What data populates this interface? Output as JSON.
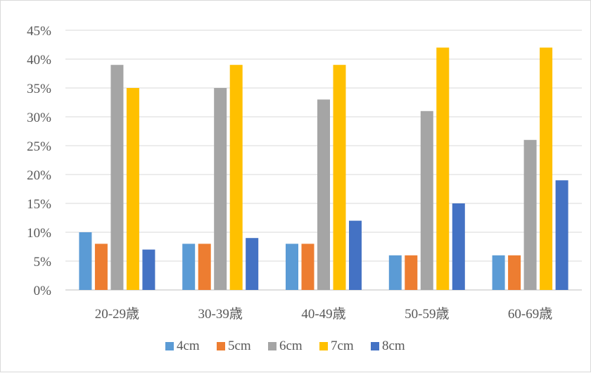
{
  "chart_data": {
    "type": "bar",
    "title": "",
    "xlabel": "",
    "ylabel": "",
    "categories": [
      "20-29歳",
      "30-39歳",
      "40-49歳",
      "50-59歳",
      "60-69歳"
    ],
    "ylim": [
      0,
      45
    ],
    "y_ticks": [
      0,
      5,
      10,
      15,
      20,
      25,
      30,
      35,
      40,
      45
    ],
    "y_tick_labels": [
      "0%",
      "5%",
      "10%",
      "15%",
      "20%",
      "25%",
      "30%",
      "35%",
      "40%",
      "45%"
    ],
    "grid": true,
    "legend_position": "bottom",
    "series": [
      {
        "name": "4cm",
        "color": "#5b9bd5",
        "values": [
          10,
          8,
          8,
          6,
          6
        ]
      },
      {
        "name": "5cm",
        "color": "#ed7d31",
        "values": [
          8,
          8,
          8,
          6,
          6
        ]
      },
      {
        "name": "6cm",
        "color": "#a5a5a5",
        "values": [
          39,
          35,
          33,
          31,
          26
        ]
      },
      {
        "name": "7cm",
        "color": "#ffc000",
        "values": [
          35,
          39,
          39,
          42,
          42
        ]
      },
      {
        "name": "8cm",
        "color": "#4472c4",
        "values": [
          7,
          9,
          12,
          15,
          19
        ]
      }
    ]
  }
}
